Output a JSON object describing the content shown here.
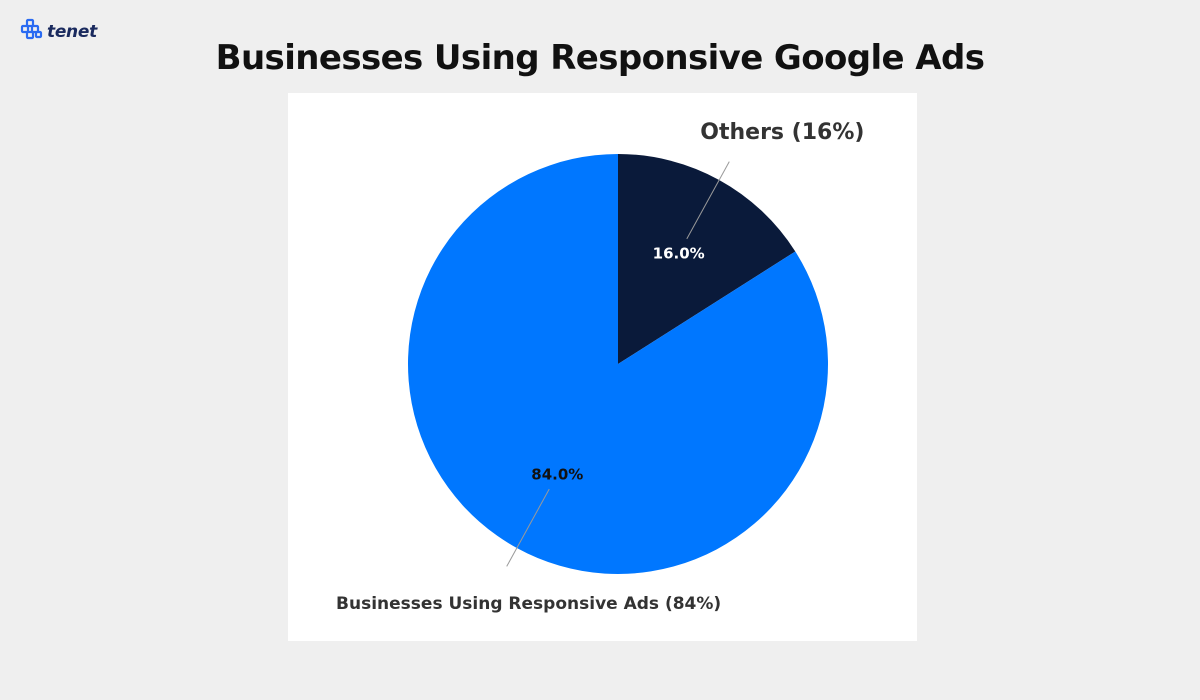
{
  "brand": {
    "logo_text": "tenet",
    "logo_color": "#1a2a5e",
    "logo_icon": "tenet-logo-icon"
  },
  "title": "Businesses Using Responsive Google Ads",
  "chart_data": {
    "type": "pie",
    "title": "Businesses Using Responsive Google Ads",
    "slices": [
      {
        "label": "Others (16%)",
        "value": 16.0,
        "pct_label": "16.0%",
        "color": "#0a1a3a",
        "pct_text_color": "#ffffff"
      },
      {
        "label": "Businesses Using Responsive Ads (84%)",
        "value": 84.0,
        "pct_label": "84.0%",
        "color": "#0077ff",
        "pct_text_color": "#111111"
      }
    ],
    "start_angle": "top",
    "direction": "clockwise",
    "legend": "none"
  }
}
